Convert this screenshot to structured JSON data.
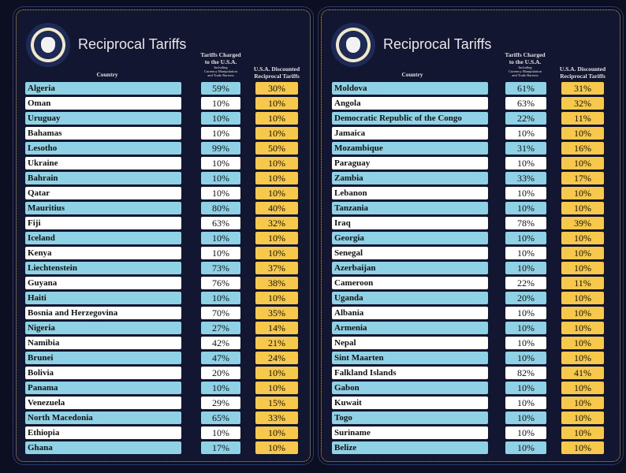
{
  "title": "Reciprocal Tariffs",
  "headers": {
    "country": "Country",
    "tariff_line1": "Tariffs Charged",
    "tariff_line2": "to the U.S.A.",
    "tariff_sub1": "Including",
    "tariff_sub2": "Currency Manipulation",
    "tariff_sub3": "and Trade Barriers",
    "disc_line1": "U.S.A. Discounted",
    "disc_line2": "Reciprocal Tariffs"
  },
  "colors": {
    "background": "#0c0e22",
    "row_blue": "#90d2e5",
    "row_white": "#ffffff",
    "discount": "#f6c84b"
  },
  "panels": [
    {
      "rows": [
        [
          "Algeria",
          "59%",
          "30%"
        ],
        [
          "Oman",
          "10%",
          "10%"
        ],
        [
          "Uruguay",
          "10%",
          "10%"
        ],
        [
          "Bahamas",
          "10%",
          "10%"
        ],
        [
          "Lesotho",
          "99%",
          "50%"
        ],
        [
          "Ukraine",
          "10%",
          "10%"
        ],
        [
          "Bahrain",
          "10%",
          "10%"
        ],
        [
          "Qatar",
          "10%",
          "10%"
        ],
        [
          "Mauritius",
          "80%",
          "40%"
        ],
        [
          "Fiji",
          "63%",
          "32%"
        ],
        [
          "Iceland",
          "10%",
          "10%"
        ],
        [
          "Kenya",
          "10%",
          "10%"
        ],
        [
          "Liechtenstein",
          "73%",
          "37%"
        ],
        [
          "Guyana",
          "76%",
          "38%"
        ],
        [
          "Haiti",
          "10%",
          "10%"
        ],
        [
          "Bosnia and Herzegovina",
          "70%",
          "35%"
        ],
        [
          "Nigeria",
          "27%",
          "14%"
        ],
        [
          "Namibia",
          "42%",
          "21%"
        ],
        [
          "Brunei",
          "47%",
          "24%"
        ],
        [
          "Bolivia",
          "20%",
          "10%"
        ],
        [
          "Panama",
          "10%",
          "10%"
        ],
        [
          "Venezuela",
          "29%",
          "15%"
        ],
        [
          "North Macedonia",
          "65%",
          "33%"
        ],
        [
          "Ethiopia",
          "10%",
          "10%"
        ],
        [
          "Ghana",
          "17%",
          "10%"
        ]
      ]
    },
    {
      "rows": [
        [
          "Moldova",
          "61%",
          "31%"
        ],
        [
          "Angola",
          "63%",
          "32%"
        ],
        [
          "Democratic Republic of the Congo",
          "22%",
          "11%"
        ],
        [
          "Jamaica",
          "10%",
          "10%"
        ],
        [
          "Mozambique",
          "31%",
          "16%"
        ],
        [
          "Paraguay",
          "10%",
          "10%"
        ],
        [
          "Zambia",
          "33%",
          "17%"
        ],
        [
          "Lebanon",
          "10%",
          "10%"
        ],
        [
          "Tanzania",
          "10%",
          "10%"
        ],
        [
          "Iraq",
          "78%",
          "39%"
        ],
        [
          "Georgia",
          "10%",
          "10%"
        ],
        [
          "Senegal",
          "10%",
          "10%"
        ],
        [
          "Azerbaijan",
          "10%",
          "10%"
        ],
        [
          "Cameroon",
          "22%",
          "11%"
        ],
        [
          "Uganda",
          "20%",
          "10%"
        ],
        [
          "Albania",
          "10%",
          "10%"
        ],
        [
          "Armenia",
          "10%",
          "10%"
        ],
        [
          "Nepal",
          "10%",
          "10%"
        ],
        [
          "Sint Maarten",
          "10%",
          "10%"
        ],
        [
          "Falkland Islands",
          "82%",
          "41%"
        ],
        [
          "Gabon",
          "10%",
          "10%"
        ],
        [
          "Kuwait",
          "10%",
          "10%"
        ],
        [
          "Togo",
          "10%",
          "10%"
        ],
        [
          "Suriname",
          "10%",
          "10%"
        ],
        [
          "Belize",
          "10%",
          "10%"
        ]
      ]
    }
  ]
}
